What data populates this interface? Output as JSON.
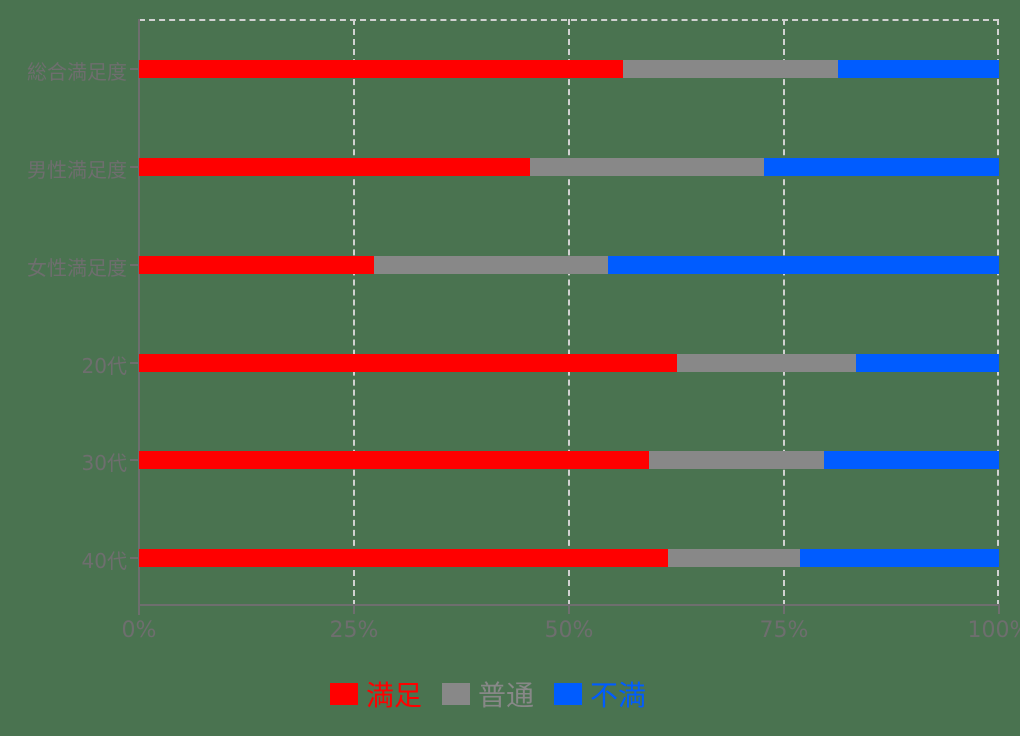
{
  "chart_data": {
    "type": "bar",
    "orientation": "horizontal",
    "stacked": true,
    "normalized_percent": true,
    "title": "",
    "xlabel": "",
    "ylabel": "",
    "xlim": [
      0,
      100
    ],
    "x_ticks": [
      "0%",
      "25%",
      "50%",
      "75%",
      "100%"
    ],
    "grid": true,
    "legend_position": "bottom",
    "categories": [
      "総合満足度",
      "男性満足度",
      "女性満足度",
      "20代",
      "30代",
      "40代"
    ],
    "series": [
      {
        "name": "満足",
        "color": "#ff0000",
        "values": [
          56.3,
          45.5,
          27.3,
          62.6,
          59.3,
          61.5
        ]
      },
      {
        "name": "普通",
        "color": "#888888",
        "values": [
          25.0,
          27.2,
          27.2,
          20.8,
          20.4,
          15.4
        ]
      },
      {
        "name": "不満",
        "color": "#005cff",
        "values": [
          18.7,
          27.3,
          45.5,
          16.6,
          20.3,
          23.1
        ]
      }
    ]
  },
  "legend": [
    {
      "label": "満足",
      "color": "#ff0000"
    },
    {
      "label": "普通",
      "color": "#888888"
    },
    {
      "label": "不満",
      "color": "#005cff"
    }
  ]
}
